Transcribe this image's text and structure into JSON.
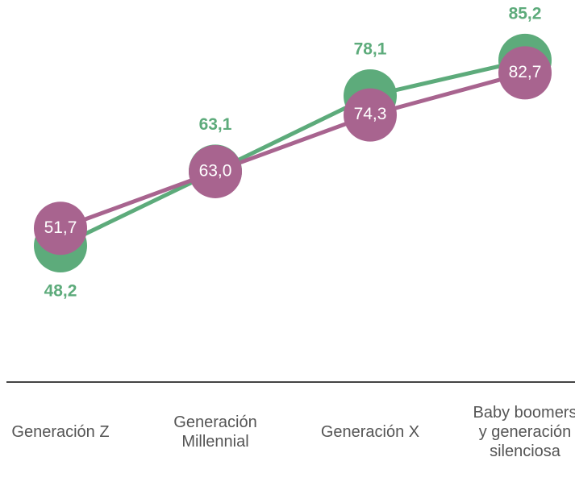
{
  "chart_data": {
    "type": "line",
    "categories": [
      "Generación Z",
      "Generación Millennial",
      "Generación X",
      "Baby boomers y generación silenciosa"
    ],
    "series": [
      {
        "color": "#5dab7b",
        "values": [
          48.2,
          63.1,
          78.1,
          85.2
        ],
        "value_labels": [
          "48,2",
          "63,1",
          "78,1",
          "85,2"
        ]
      },
      {
        "color": "#a8648f",
        "values": [
          51.7,
          63.0,
          74.3,
          82.7
        ],
        "value_labels": [
          "51,7",
          "63,0",
          "74,3",
          "82,7"
        ]
      }
    ],
    "ylim": [
      40,
      90
    ]
  }
}
